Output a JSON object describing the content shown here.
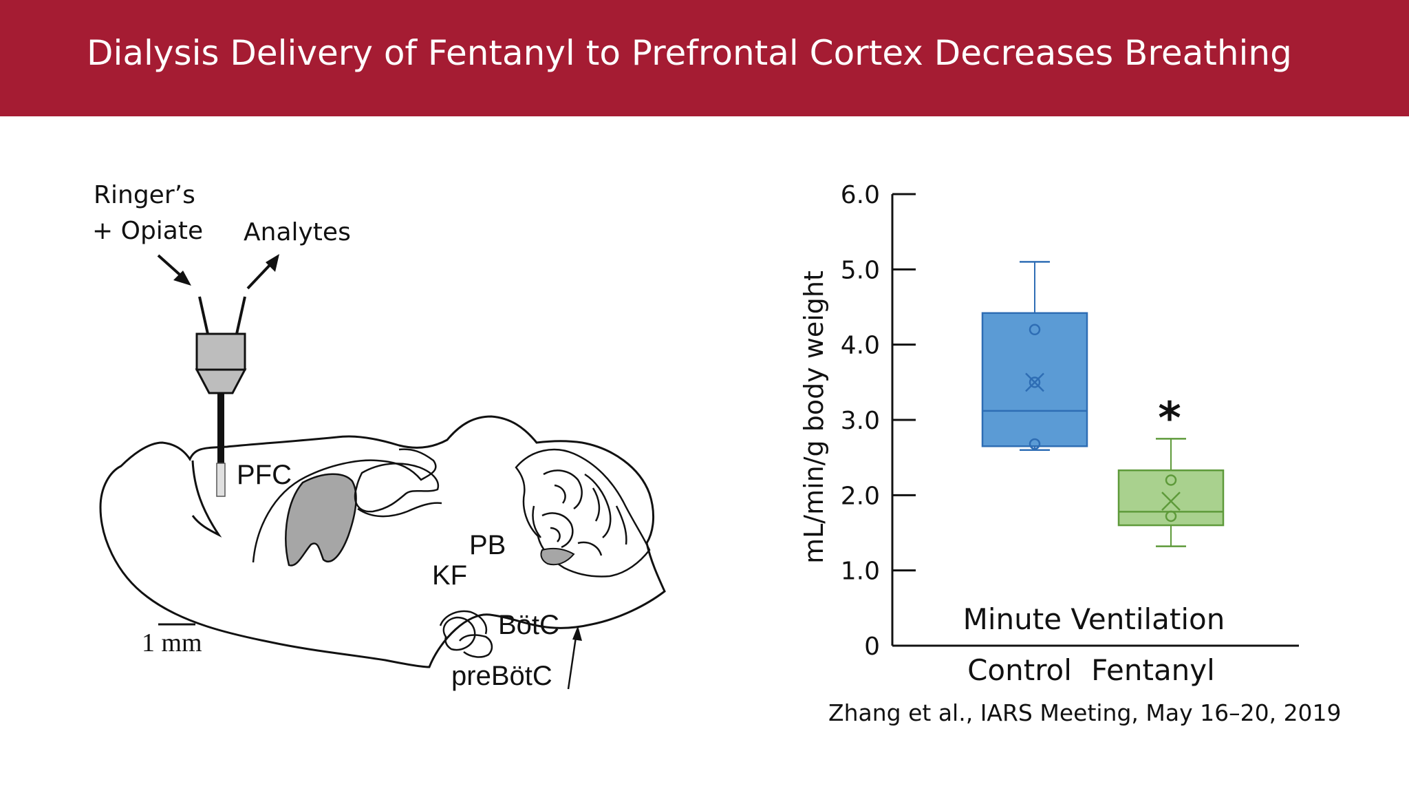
{
  "slide": {
    "title": "Dialysis Delivery of Fentanyl to Prefrontal Cortex Decreases Breathing",
    "citation": "Zhang et al., IARS Meeting, May 16–20, 2019",
    "banner_color": "#a51c33"
  },
  "diagram": {
    "inflow_label_line1": "Ringer’s",
    "inflow_label_line2": "+ Opiate",
    "outflow_label": "Analytes",
    "region_pfc": "PFC",
    "region_pb": "PB",
    "region_kf": "KF",
    "region_botc": "BötC",
    "region_prebotc": "preBötC",
    "scale_label": "1 mm"
  },
  "chart_data": {
    "type": "box",
    "title": "Minute Ventilation",
    "ylabel": "mL/min/g body weight",
    "ylim": [
      0,
      6.0
    ],
    "yticks": [
      "0",
      "1.0",
      "2.0",
      "3.0",
      "4.0",
      "5.0",
      "6.0"
    ],
    "categories": [
      "Control",
      "Fentanyl"
    ],
    "boxes": [
      {
        "category": "Control",
        "color": "#5b9bd5",
        "edge_color": "#2e6db4",
        "whisker_low": 2.6,
        "q1": 2.65,
        "median": 3.12,
        "q3": 4.42,
        "whisker_high": 5.1,
        "mean": 3.5,
        "points": [
          4.2,
          3.5,
          2.68
        ]
      },
      {
        "category": "Fentanyl",
        "color": "#a9d18e",
        "edge_color": "#5e9a3a",
        "whisker_low": 1.32,
        "q1": 1.6,
        "median": 1.78,
        "q3": 2.33,
        "whisker_high": 2.75,
        "mean": 1.92,
        "points": [
          2.2,
          1.72
        ],
        "significance": "*"
      }
    ]
  }
}
